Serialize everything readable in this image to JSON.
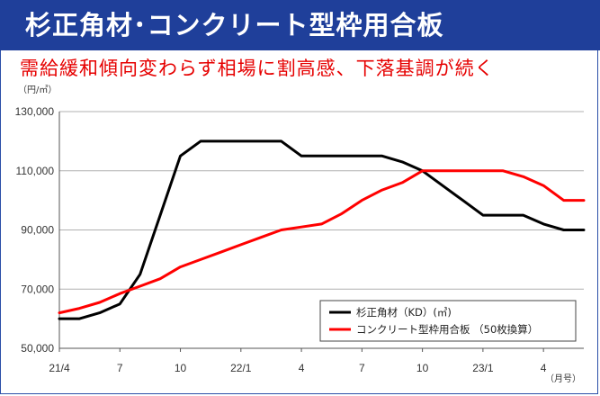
{
  "header": {
    "title": "杉正角材･コンクリート型枠用合板",
    "subtitle": "需給緩和傾向変わらず相場に割高感、下落基調が続く"
  },
  "chart_data": {
    "type": "line",
    "y_unit": "（円/㎥）",
    "x_unit": "（月号）",
    "ylim": [
      50000,
      130000
    ],
    "y_ticks": [
      50000,
      70000,
      90000,
      110000,
      130000
    ],
    "y_tick_labels": [
      "50,000",
      "70,000",
      "90,000",
      "110,000",
      "130,000"
    ],
    "x_range": [
      0,
      26
    ],
    "x_ticks": [
      0,
      3,
      6,
      9,
      12,
      15,
      18,
      21,
      24
    ],
    "x_tick_labels": [
      "21/4",
      "7",
      "10",
      "22/1",
      "4",
      "7",
      "10",
      "23/1",
      "4"
    ],
    "grid": "horizontal",
    "legend_position": "bottom-right",
    "series": [
      {
        "name": "杉正角材（KD）(㎥)",
        "color": "#000000",
        "x": [
          0,
          1,
          2,
          3,
          4,
          5,
          6,
          7,
          8,
          9,
          10,
          11,
          12,
          13,
          14,
          15,
          16,
          17,
          18,
          19,
          20,
          21,
          22,
          23,
          24,
          25,
          26
        ],
        "values": [
          60000,
          60000,
          62000,
          65000,
          75000,
          95000,
          115000,
          120000,
          120000,
          120000,
          120000,
          120000,
          115000,
          115000,
          115000,
          115000,
          115000,
          113000,
          110000,
          105000,
          100000,
          95000,
          95000,
          95000,
          92000,
          90000,
          90000
        ]
      },
      {
        "name": "コンクリート型枠用合板 （50枚換算）",
        "color": "#ff0000",
        "x": [
          0,
          1,
          2,
          3,
          4,
          5,
          6,
          7,
          8,
          9,
          10,
          11,
          12,
          13,
          14,
          15,
          16,
          17,
          18,
          19,
          20,
          21,
          22,
          23,
          24,
          25,
          26
        ],
        "values": [
          62000,
          63500,
          65500,
          68500,
          71000,
          73500,
          77500,
          80000,
          82500,
          85000,
          87500,
          90000,
          91000,
          92000,
          95500,
          100000,
          103500,
          106000,
          110000,
          110000,
          110000,
          110000,
          110000,
          108000,
          105000,
          100000,
          100000
        ]
      }
    ]
  }
}
